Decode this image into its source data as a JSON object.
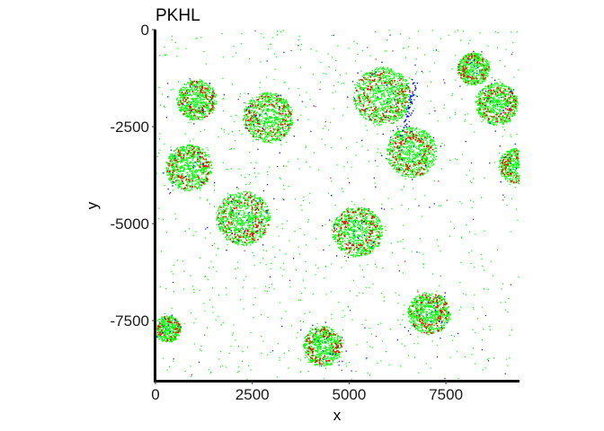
{
  "chart_data": {
    "type": "scatter",
    "title": "PKHL",
    "xlabel": "x",
    "ylabel": "y",
    "xlim": [
      0,
      9400
    ],
    "ylim": [
      -9050,
      0
    ],
    "x_ticks": [
      0,
      2500,
      5000,
      7500
    ],
    "y_ticks": [
      0,
      -2500,
      -5000,
      -7500
    ],
    "x_tick_labels": [
      "0",
      "2500",
      "5000",
      "7500"
    ],
    "y_tick_labels": [
      "0",
      "-2500",
      "-5000",
      "-7500"
    ],
    "grid": false,
    "legend": "none",
    "series": [
      {
        "color": "#00ff00"
      },
      {
        "color": "#ff0000"
      },
      {
        "color": "#0000ff"
      }
    ],
    "clusters": [
      {
        "x": 1050,
        "y": -1800,
        "r": 520
      },
      {
        "x": 2900,
        "y": -2250,
        "r": 650
      },
      {
        "x": 5850,
        "y": -1700,
        "r": 750
      },
      {
        "x": 6600,
        "y": -3150,
        "r": 650
      },
      {
        "x": 8200,
        "y": -1000,
        "r": 420
      },
      {
        "x": 8800,
        "y": -1900,
        "r": 550
      },
      {
        "x": 850,
        "y": -3550,
        "r": 600
      },
      {
        "x": 2250,
        "y": -4850,
        "r": 700
      },
      {
        "x": 5200,
        "y": -5200,
        "r": 650
      },
      {
        "x": 7050,
        "y": -7300,
        "r": 550
      },
      {
        "x": 4300,
        "y": -8150,
        "r": 520
      },
      {
        "x": 9300,
        "y": -3500,
        "r": 450
      },
      {
        "x": 300,
        "y": -7700,
        "r": 350
      }
    ]
  }
}
